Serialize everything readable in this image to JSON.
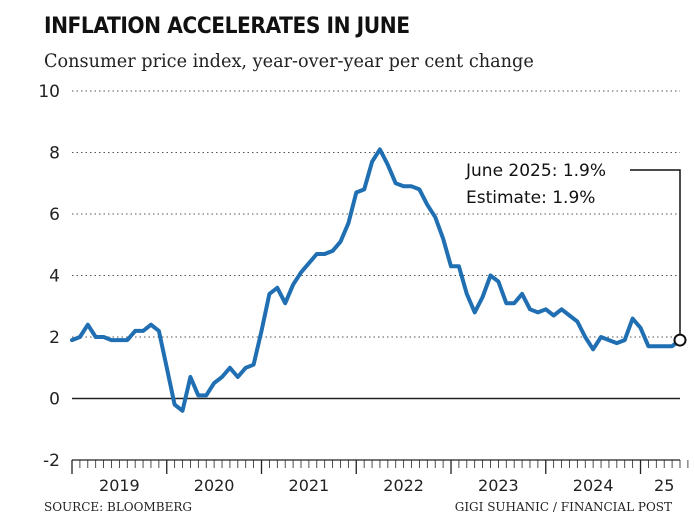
{
  "header": {
    "title": "INFLATION ACCELERATES IN JUNE",
    "subtitle": "Consumer price index, year-over-year per cent change"
  },
  "footer": {
    "source": "SOURCE: BLOOMBERG",
    "credit": "GIGI SUHANIC / FINANCIAL POST"
  },
  "colors": {
    "line": "#1f6fb2",
    "axis": "#222222",
    "grid": "#555555"
  },
  "chart_data": {
    "type": "line",
    "title": "INFLATION ACCELERATES IN JUNE",
    "subtitle": "Consumer price index, year-over-year per cent change",
    "ylim": [
      -2,
      10
    ],
    "yticks": [
      -2,
      0,
      2,
      4,
      6,
      8,
      10
    ],
    "grid": true,
    "year_labels": [
      {
        "label": "2019",
        "year": 2019
      },
      {
        "label": "2020",
        "year": 2020
      },
      {
        "label": "2021",
        "year": 2021
      },
      {
        "label": "2022",
        "year": 2022
      },
      {
        "label": "2023",
        "year": 2023
      },
      {
        "label": "2024",
        "year": 2024
      },
      {
        "label": "25",
        "year": 2025
      }
    ],
    "series": [
      {
        "x": [
          "2019-01",
          "2019-02",
          "2019-03",
          "2019-04",
          "2019-05",
          "2019-06",
          "2019-07",
          "2019-08",
          "2019-09",
          "2019-10",
          "2019-11",
          "2019-12",
          "2020-01",
          "2020-02",
          "2020-03",
          "2020-04",
          "2020-05",
          "2020-06",
          "2020-07",
          "2020-08",
          "2020-09",
          "2020-10",
          "2020-11",
          "2020-12",
          "2021-01",
          "2021-02",
          "2021-03",
          "2021-04",
          "2021-05",
          "2021-06",
          "2021-07",
          "2021-08",
          "2021-09",
          "2021-10",
          "2021-11",
          "2021-12",
          "2022-01",
          "2022-02",
          "2022-03",
          "2022-04",
          "2022-05",
          "2022-06",
          "2022-07",
          "2022-08",
          "2022-09",
          "2022-10",
          "2022-11",
          "2022-12",
          "2023-01",
          "2023-02",
          "2023-03",
          "2023-04",
          "2023-05",
          "2023-06",
          "2023-07",
          "2023-08",
          "2023-09",
          "2023-10",
          "2023-11",
          "2023-12",
          "2024-01",
          "2024-02",
          "2024-03",
          "2024-04",
          "2024-05",
          "2024-06",
          "2024-07",
          "2024-08",
          "2024-09",
          "2024-10",
          "2024-11",
          "2024-12",
          "2025-01",
          "2025-02",
          "2025-03",
          "2025-04",
          "2025-05",
          "2025-06"
        ],
        "values": [
          1.9,
          2.0,
          2.4,
          2.0,
          2.0,
          1.9,
          1.9,
          1.9,
          2.2,
          2.2,
          2.4,
          2.2,
          1.0,
          -0.2,
          -0.4,
          0.7,
          0.1,
          0.1,
          0.5,
          0.7,
          1.0,
          0.7,
          1.0,
          1.1,
          2.2,
          3.4,
          3.6,
          3.1,
          3.7,
          4.1,
          4.4,
          4.7,
          4.7,
          4.8,
          5.1,
          5.7,
          6.7,
          6.8,
          7.7,
          8.1,
          7.6,
          7.0,
          6.9,
          6.9,
          6.8,
          6.3,
          5.9,
          5.2,
          4.3,
          4.3,
          3.4,
          2.8,
          3.3,
          4.0,
          3.8,
          3.1,
          3.1,
          3.4,
          2.9,
          2.8,
          2.9,
          2.7,
          2.9,
          2.7,
          2.5,
          2.0,
          1.6,
          2.0,
          1.9,
          1.8,
          1.9,
          2.6,
          2.3,
          1.7,
          1.7,
          1.7,
          1.7,
          1.9
        ]
      }
    ],
    "annotations": [
      {
        "text": "June 2025: 1.9%",
        "x": "2025-06",
        "y": 1.9
      },
      {
        "text": "Estimate: 1.9%"
      }
    ]
  }
}
